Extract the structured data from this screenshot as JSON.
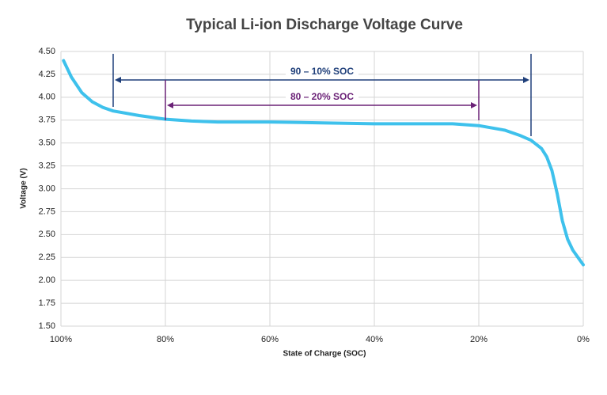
{
  "chart_data": {
    "type": "line",
    "title": "Typical Li-ion Discharge Voltage Curve",
    "x_label": "State of Charge (SOC)",
    "y_label": "Voltage (V)",
    "x": [
      99.5,
      98,
      96,
      94,
      92,
      90,
      85,
      80,
      75,
      70,
      60,
      50,
      40,
      30,
      25,
      20,
      15,
      12,
      10,
      8,
      7,
      6,
      5,
      4,
      3,
      2,
      1,
      0
    ],
    "values": [
      4.4,
      4.22,
      4.05,
      3.95,
      3.89,
      3.85,
      3.8,
      3.76,
      3.74,
      3.73,
      3.73,
      3.72,
      3.71,
      3.71,
      3.71,
      3.69,
      3.64,
      3.58,
      3.53,
      3.44,
      3.35,
      3.2,
      2.95,
      2.65,
      2.45,
      2.33,
      2.25,
      2.17
    ],
    "color": "#3ec1ec",
    "xlim": [
      100,
      0
    ],
    "xticks": [
      {
        "value": 100,
        "label": "100%"
      },
      {
        "value": 80,
        "label": "80%"
      },
      {
        "value": 60,
        "label": "60%"
      },
      {
        "value": 40,
        "label": "40%"
      },
      {
        "value": 20,
        "label": "20%"
      },
      {
        "value": 0,
        "label": "0%"
      }
    ],
    "ylim": [
      1.5,
      4.5
    ],
    "yticks": [
      {
        "value": 1.5,
        "label": "1.50"
      },
      {
        "value": 1.75,
        "label": "1.75"
      },
      {
        "value": 2.0,
        "label": "2.00"
      },
      {
        "value": 2.25,
        "label": "2.25"
      },
      {
        "value": 2.5,
        "label": "2.50"
      },
      {
        "value": 2.75,
        "label": "2.75"
      },
      {
        "value": 3.0,
        "label": "3.00"
      },
      {
        "value": 3.25,
        "label": "3.25"
      },
      {
        "value": 3.5,
        "label": "3.50"
      },
      {
        "value": 3.75,
        "label": "3.75"
      },
      {
        "value": 4.0,
        "label": "4.00"
      },
      {
        "value": 4.25,
        "label": "4.25"
      },
      {
        "value": 4.5,
        "label": "4.50"
      }
    ],
    "grid": true,
    "annotations": [
      {
        "text": "90 – 10% SOC",
        "from": 90,
        "to": 10,
        "color": "#1f3f7a"
      },
      {
        "text": "80 – 20% SOC",
        "from": 80,
        "to": 20,
        "color": "#6b2277"
      }
    ]
  }
}
